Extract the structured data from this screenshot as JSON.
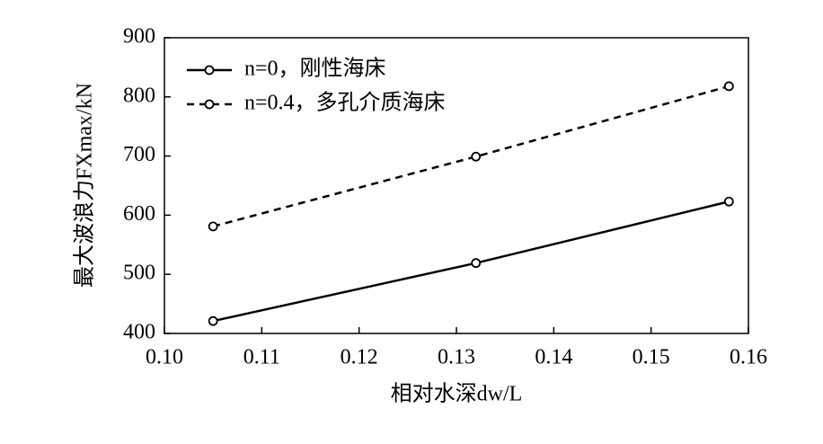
{
  "chart_data": {
    "type": "line",
    "x_label": "相对水深dw/L",
    "y_label": "最大波浪力FXmax/kN",
    "x": [
      0.105,
      0.132,
      0.158
    ],
    "series": [
      {
        "name": "n=0，刚性海床",
        "color": "#000000",
        "dash": "solid",
        "values": [
          421,
          519,
          623
        ]
      },
      {
        "name": "n=0.4，多孔介质海床",
        "color": "#000000",
        "dash": "dashed",
        "values": [
          581,
          699,
          818
        ]
      }
    ],
    "xlim": [
      0.1,
      0.16
    ],
    "xticks": [
      {
        "value": 0.1,
        "label": "0.10"
      },
      {
        "value": 0.11,
        "label": "0.11"
      },
      {
        "value": 0.12,
        "label": "0.12"
      },
      {
        "value": 0.13,
        "label": "0.13"
      },
      {
        "value": 0.14,
        "label": "0.14"
      },
      {
        "value": 0.15,
        "label": "0.15"
      },
      {
        "value": 0.16,
        "label": "0.16"
      }
    ],
    "ylim": [
      400,
      900
    ],
    "yticks": [
      400,
      500,
      600,
      700,
      800,
      900
    ],
    "legend": "upper-left",
    "grid": false
  }
}
